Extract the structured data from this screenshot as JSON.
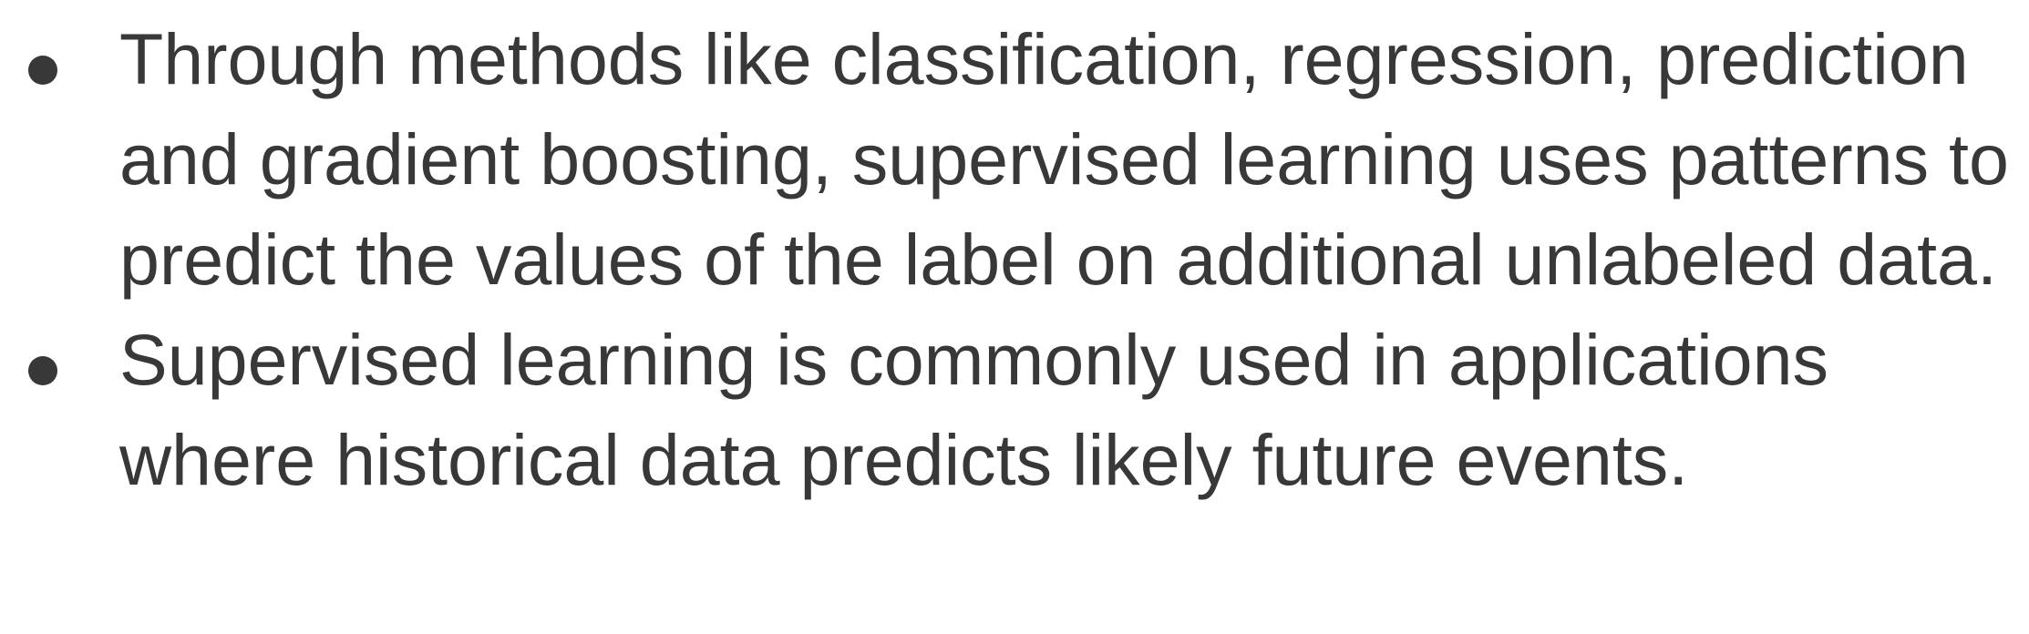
{
  "bullets": [
    {
      "text": "Through methods like classification, regression, prediction and gradient boosting, supervised learning uses patterns to predict the values of the label on additional unlabeled data."
    },
    {
      "text": "Supervised learning is commonly used in applications where historical data predicts likely future events."
    }
  ],
  "colors": {
    "text": "#383838",
    "background": "#ffffff"
  }
}
